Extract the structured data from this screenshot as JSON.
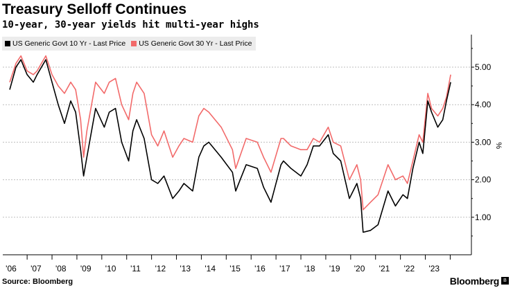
{
  "title": "Treasury Selloff Continues",
  "subtitle": "10-year, 30-year yields hit multi-year highs",
  "source": "Source: Bloomberg",
  "brand": "Bloomberg",
  "chart_data": {
    "type": "line",
    "ylabel": "%",
    "ylim": [
      0.0,
      5.8
    ],
    "yticks": [
      1.0,
      2.0,
      3.0,
      4.0,
      5.0
    ],
    "ytick_labels": [
      "1.00",
      "2.00",
      "3.00",
      "4.00",
      "5.00"
    ],
    "xlim": [
      2006.0,
      2023.75
    ],
    "xticks": [
      2006,
      2007,
      2008,
      2009,
      2010,
      2011,
      2012,
      2013,
      2014,
      2015,
      2016,
      2017,
      2018,
      2019,
      2020,
      2021,
      2022,
      2023
    ],
    "xtick_labels": [
      "'06",
      "'07",
      "'08",
      "'09",
      "'10",
      "'11",
      "'12",
      "'13",
      "'14",
      "'15",
      "'16",
      "'17",
      "'18",
      "'19",
      "'20",
      "'21",
      "'22",
      "'23"
    ],
    "grid": "horizontal dashed",
    "legend_position": "top-left",
    "series": [
      {
        "name": "US Generic Govt 10 Yr - Last Price",
        "color": "#000000",
        "points": [
          [
            2006.0,
            4.4
          ],
          [
            2006.25,
            5.0
          ],
          [
            2006.45,
            5.2
          ],
          [
            2006.7,
            4.8
          ],
          [
            2006.95,
            4.6
          ],
          [
            2007.1,
            4.8
          ],
          [
            2007.45,
            5.2
          ],
          [
            2007.7,
            4.6
          ],
          [
            2007.95,
            4.0
          ],
          [
            2008.2,
            3.5
          ],
          [
            2008.45,
            4.1
          ],
          [
            2008.65,
            3.8
          ],
          [
            2008.85,
            2.8
          ],
          [
            2008.97,
            2.1
          ],
          [
            2009.1,
            2.6
          ],
          [
            2009.45,
            3.9
          ],
          [
            2009.8,
            3.4
          ],
          [
            2010.0,
            3.8
          ],
          [
            2010.25,
            3.9
          ],
          [
            2010.5,
            3.0
          ],
          [
            2010.78,
            2.5
          ],
          [
            2010.95,
            3.3
          ],
          [
            2011.1,
            3.6
          ],
          [
            2011.4,
            3.1
          ],
          [
            2011.7,
            2.0
          ],
          [
            2011.95,
            1.9
          ],
          [
            2012.2,
            2.1
          ],
          [
            2012.55,
            1.5
          ],
          [
            2012.8,
            1.7
          ],
          [
            2013.0,
            1.9
          ],
          [
            2013.35,
            1.7
          ],
          [
            2013.6,
            2.6
          ],
          [
            2013.8,
            2.9
          ],
          [
            2014.0,
            3.0
          ],
          [
            2014.5,
            2.6
          ],
          [
            2014.95,
            2.2
          ],
          [
            2015.08,
            1.7
          ],
          [
            2015.5,
            2.4
          ],
          [
            2015.95,
            2.3
          ],
          [
            2016.2,
            1.8
          ],
          [
            2016.5,
            1.4
          ],
          [
            2016.9,
            2.4
          ],
          [
            2017.0,
            2.5
          ],
          [
            2017.3,
            2.3
          ],
          [
            2017.7,
            2.1
          ],
          [
            2017.95,
            2.4
          ],
          [
            2018.2,
            2.9
          ],
          [
            2018.45,
            2.9
          ],
          [
            2018.8,
            3.2
          ],
          [
            2019.0,
            2.7
          ],
          [
            2019.3,
            2.5
          ],
          [
            2019.65,
            1.5
          ],
          [
            2019.95,
            1.9
          ],
          [
            2020.1,
            1.5
          ],
          [
            2020.2,
            0.6
          ],
          [
            2020.5,
            0.65
          ],
          [
            2020.8,
            0.8
          ],
          [
            2021.2,
            1.7
          ],
          [
            2021.5,
            1.3
          ],
          [
            2021.8,
            1.6
          ],
          [
            2021.98,
            1.5
          ],
          [
            2022.2,
            2.3
          ],
          [
            2022.45,
            3.0
          ],
          [
            2022.6,
            2.7
          ],
          [
            2022.8,
            4.1
          ],
          [
            2022.95,
            3.8
          ],
          [
            2023.2,
            3.4
          ],
          [
            2023.4,
            3.6
          ],
          [
            2023.55,
            4.1
          ],
          [
            2023.72,
            4.6
          ]
        ]
      },
      {
        "name": "US Generic Govt 30 Yr - Last Price",
        "color": "#f26a6a",
        "points": [
          [
            2006.0,
            4.6
          ],
          [
            2006.25,
            5.1
          ],
          [
            2006.45,
            5.3
          ],
          [
            2006.7,
            4.9
          ],
          [
            2006.95,
            4.8
          ],
          [
            2007.1,
            4.9
          ],
          [
            2007.45,
            5.3
          ],
          [
            2007.7,
            4.8
          ],
          [
            2007.95,
            4.5
          ],
          [
            2008.2,
            4.3
          ],
          [
            2008.45,
            4.6
          ],
          [
            2008.65,
            4.4
          ],
          [
            2008.85,
            3.6
          ],
          [
            2008.97,
            2.6
          ],
          [
            2009.1,
            3.3
          ],
          [
            2009.45,
            4.6
          ],
          [
            2009.8,
            4.3
          ],
          [
            2010.0,
            4.6
          ],
          [
            2010.25,
            4.7
          ],
          [
            2010.5,
            4.0
          ],
          [
            2010.78,
            3.6
          ],
          [
            2010.95,
            4.3
          ],
          [
            2011.1,
            4.6
          ],
          [
            2011.4,
            4.3
          ],
          [
            2011.7,
            3.2
          ],
          [
            2011.95,
            2.9
          ],
          [
            2012.2,
            3.3
          ],
          [
            2012.55,
            2.6
          ],
          [
            2012.8,
            2.9
          ],
          [
            2013.0,
            3.1
          ],
          [
            2013.35,
            3.0
          ],
          [
            2013.6,
            3.7
          ],
          [
            2013.8,
            3.9
          ],
          [
            2014.0,
            3.8
          ],
          [
            2014.5,
            3.4
          ],
          [
            2014.95,
            2.8
          ],
          [
            2015.08,
            2.3
          ],
          [
            2015.5,
            3.1
          ],
          [
            2015.95,
            3.0
          ],
          [
            2016.2,
            2.6
          ],
          [
            2016.5,
            2.2
          ],
          [
            2016.9,
            3.1
          ],
          [
            2017.0,
            3.1
          ],
          [
            2017.3,
            2.9
          ],
          [
            2017.7,
            2.8
          ],
          [
            2017.95,
            2.8
          ],
          [
            2018.2,
            3.1
          ],
          [
            2018.45,
            3.0
          ],
          [
            2018.8,
            3.4
          ],
          [
            2019.0,
            3.0
          ],
          [
            2019.3,
            2.9
          ],
          [
            2019.65,
            2.0
          ],
          [
            2019.95,
            2.4
          ],
          [
            2020.1,
            2.0
          ],
          [
            2020.2,
            1.2
          ],
          [
            2020.5,
            1.4
          ],
          [
            2020.8,
            1.6
          ],
          [
            2021.2,
            2.4
          ],
          [
            2021.5,
            2.0
          ],
          [
            2021.8,
            2.1
          ],
          [
            2021.98,
            1.9
          ],
          [
            2022.2,
            2.5
          ],
          [
            2022.45,
            3.2
          ],
          [
            2022.6,
            3.0
          ],
          [
            2022.8,
            4.3
          ],
          [
            2022.95,
            3.9
          ],
          [
            2023.2,
            3.7
          ],
          [
            2023.4,
            3.9
          ],
          [
            2023.55,
            4.2
          ],
          [
            2023.72,
            4.8
          ]
        ]
      }
    ]
  }
}
